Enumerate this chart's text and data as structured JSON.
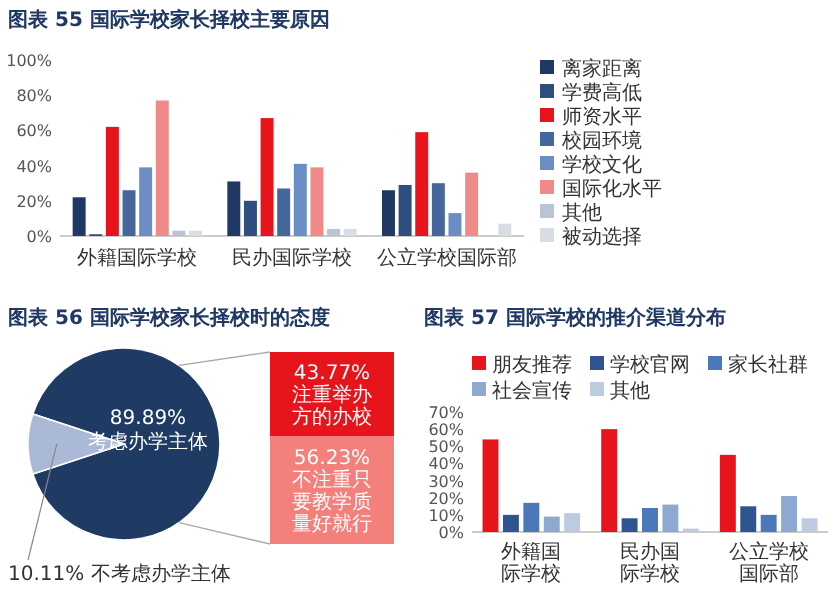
{
  "chart_data": [
    {
      "type": "bar",
      "title": "图表 55 国际学校家长择校主要原因",
      "categories": [
        "外籍国际学校",
        "民办国际学校",
        "公立学校国际部"
      ],
      "ylim": [
        0,
        100
      ],
      "yticks": [
        {
          "value": 0,
          "label": "0%"
        },
        {
          "value": 20,
          "label": "20%"
        },
        {
          "value": 40,
          "label": "40%"
        },
        {
          "value": 60,
          "label": "60%"
        },
        {
          "value": 80,
          "label": "80%"
        },
        {
          "value": 100,
          "label": "100%"
        }
      ],
      "legend": "right",
      "series": [
        {
          "name": "离家距离",
          "color": "#1f3864",
          "values": [
            22,
            31,
            26
          ]
        },
        {
          "name": "学费高低",
          "color": "#2f4d7e",
          "values": [
            1,
            20,
            29
          ]
        },
        {
          "name": "师资水平",
          "color": "#e8141c",
          "values": [
            62,
            67,
            59
          ]
        },
        {
          "name": "校园环境",
          "color": "#45679c",
          "values": [
            26,
            27,
            30
          ]
        },
        {
          "name": "学校文化",
          "color": "#6a8dc4",
          "values": [
            39,
            41,
            13
          ]
        },
        {
          "name": "国际化水平",
          "color": "#f08a88",
          "values": [
            77,
            39,
            36
          ]
        },
        {
          "name": "其他",
          "color": "#b9c4d6",
          "values": [
            3,
            4,
            0
          ]
        },
        {
          "name": "被动选择",
          "color": "#d8dce4",
          "values": [
            3,
            4,
            7
          ]
        }
      ]
    },
    {
      "type": "pie",
      "title": "图表 56 国际学校家长择校时的态度",
      "categories": [
        "考虑办学主体",
        "不考虑办学主体"
      ],
      "values": [
        89.89,
        10.11
      ],
      "value_labels": [
        "89.89%",
        "10.11%"
      ],
      "colors": [
        "#1f3b63",
        "#a9b9d6"
      ]
    },
    {
      "type": "bar",
      "stacked": true,
      "categories": [
        null
      ],
      "series": [
        {
          "name": "不注重只要教学质量好就行",
          "color": "#f4807c",
          "values": [
            56.23
          ],
          "value_labels": [
            "56.23%"
          ]
        },
        {
          "name": "注重举办方的办校",
          "color": "#e8141c",
          "values": [
            43.77
          ],
          "value_labels": [
            "43.77%"
          ]
        }
      ]
    },
    {
      "type": "bar",
      "title": "图表 57 国际学校的推介渠道分布",
      "categories": [
        "外籍国际学校",
        "民办国际学校",
        "公立学校国际部"
      ],
      "ylim": [
        0,
        70
      ],
      "yticks": [
        {
          "value": 0,
          "label": "0%"
        },
        {
          "value": 10,
          "label": "10%"
        },
        {
          "value": 20,
          "label": "20%"
        },
        {
          "value": 30,
          "label": "30%"
        },
        {
          "value": 40,
          "label": "40%"
        },
        {
          "value": 50,
          "label": "50%"
        },
        {
          "value": 60,
          "label": "60%"
        },
        {
          "value": 70,
          "label": "70%"
        }
      ],
      "legend": "top",
      "series": [
        {
          "name": "朋友推荐",
          "color": "#e8141c",
          "values": [
            54,
            60,
            45
          ]
        },
        {
          "name": "学校官网",
          "color": "#2e5590",
          "values": [
            10,
            8,
            15
          ]
        },
        {
          "name": "家长社群",
          "color": "#4a78b8",
          "values": [
            17,
            14,
            10
          ]
        },
        {
          "name": "社会宣传",
          "color": "#8ea9d0",
          "values": [
            9,
            16,
            21
          ]
        },
        {
          "name": "其他",
          "color": "#bccbe0",
          "values": [
            11,
            2,
            8
          ]
        }
      ]
    }
  ]
}
